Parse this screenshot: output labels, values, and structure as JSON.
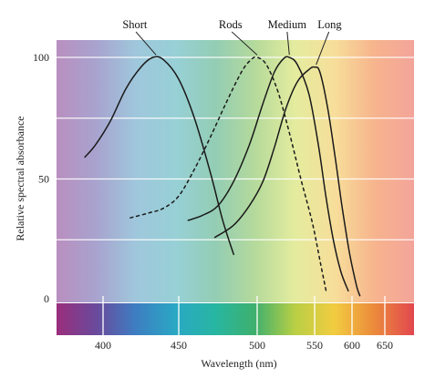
{
  "chart_data": {
    "type": "line",
    "title": "",
    "xlabel": "Wavelength (nm)",
    "ylabel": "Relative spectral absorbance",
    "x_ticks": [
      400,
      450,
      500,
      550,
      600,
      650
    ],
    "y_ticks": [
      0,
      50,
      100
    ],
    "xlim": [
      370,
      670
    ],
    "ylim": [
      0,
      105
    ],
    "grid": "horizontal lines at 25-unit steps",
    "series": [
      {
        "name": "Short",
        "style": "solid",
        "points": [
          [
            388,
            59
          ],
          [
            395,
            64
          ],
          [
            405,
            74
          ],
          [
            415,
            87
          ],
          [
            425,
            96
          ],
          [
            433,
            100
          ],
          [
            440,
            99
          ],
          [
            450,
            91
          ],
          [
            460,
            75
          ],
          [
            470,
            53
          ],
          [
            478,
            33
          ],
          [
            485,
            19
          ]
        ]
      },
      {
        "name": "Rods",
        "style": "dashed",
        "points": [
          [
            418,
            34
          ],
          [
            430,
            36
          ],
          [
            440,
            38
          ],
          [
            450,
            43
          ],
          [
            460,
            54
          ],
          [
            470,
            67
          ],
          [
            480,
            81
          ],
          [
            490,
            94
          ],
          [
            496,
            99
          ],
          [
            500,
            100
          ],
          [
            508,
            97
          ],
          [
            518,
            86
          ],
          [
            528,
            69
          ],
          [
            538,
            50
          ],
          [
            548,
            32
          ],
          [
            558,
            15
          ],
          [
            566,
            3
          ]
        ]
      },
      {
        "name": "Medium",
        "style": "solid",
        "points": [
          [
            456,
            33
          ],
          [
            465,
            35
          ],
          [
            475,
            39
          ],
          [
            485,
            49
          ],
          [
            495,
            64
          ],
          [
            505,
            81
          ],
          [
            515,
            94
          ],
          [
            523,
            99.5
          ],
          [
            528,
            100
          ],
          [
            535,
            97
          ],
          [
            545,
            85
          ],
          [
            555,
            64
          ],
          [
            565,
            43
          ],
          [
            575,
            25
          ],
          [
            585,
            12
          ],
          [
            595,
            4
          ]
        ]
      },
      {
        "name": "Long",
        "style": "solid",
        "points": [
          [
            473,
            26
          ],
          [
            485,
            31
          ],
          [
            495,
            39
          ],
          [
            505,
            49
          ],
          [
            515,
            63
          ],
          [
            525,
            79
          ],
          [
            535,
            90
          ],
          [
            545,
            95
          ],
          [
            550,
            96
          ],
          [
            557,
            94
          ],
          [
            567,
            80
          ],
          [
            577,
            60
          ],
          [
            587,
            38
          ],
          [
            597,
            19
          ],
          [
            607,
            6
          ],
          [
            612,
            2
          ]
        ]
      }
    ]
  },
  "label_anchors": [
    {
      "name": "Short",
      "text_at": [
        421,
        112
      ],
      "line_to": [
        435,
        101
      ]
    },
    {
      "name": "Rods",
      "text_at": [
        483,
        112
      ],
      "line_to": [
        500,
        101
      ]
    },
    {
      "name": "Medium",
      "text_at": [
        526,
        112
      ],
      "line_to": [
        528,
        101
      ]
    },
    {
      "name": "Long",
      "text_at": [
        570,
        112
      ],
      "line_to": [
        552,
        97
      ]
    }
  ],
  "colors": {
    "curve": "#1a1a1a",
    "spectrum_stops": [
      "#b98fbf",
      "#a8a3cf",
      "#9fc7dc",
      "#97d0d6",
      "#93cdb4",
      "#b5da9b",
      "#e4ec9e",
      "#f7de9a",
      "#f7b48d",
      "#f3a49a"
    ],
    "bar_stops": [
      "#9a2e7c",
      "#6a4a9c",
      "#3d7ec2",
      "#2aa8c4",
      "#27b6a2",
      "#3fb06d",
      "#b9cf45",
      "#f2cc40",
      "#eb8a3c",
      "#e2474e"
    ]
  }
}
